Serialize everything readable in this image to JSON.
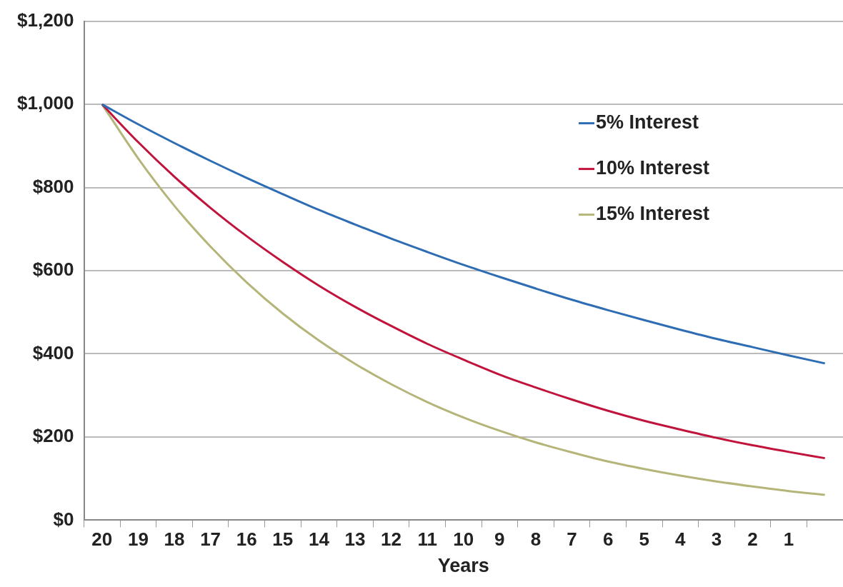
{
  "chart_data": {
    "type": "line",
    "xlabel": "Years",
    "categories": [
      "20",
      "19",
      "18",
      "17",
      "16",
      "15",
      "14",
      "13",
      "12",
      "11",
      "10",
      "9",
      "8",
      "7",
      "6",
      "5",
      "4",
      "3",
      "2",
      "1",
      null
    ],
    "series": [
      {
        "name": "5% Interest",
        "color": "#2e6db4",
        "values": [
          1000,
          952,
          907,
          864,
          823,
          784,
          746,
          711,
          677,
          645,
          614,
          585,
          557,
          530,
          505,
          481,
          458,
          436,
          416,
          396,
          377
        ]
      },
      {
        "name": "10% Interest",
        "color": "#c0143c",
        "values": [
          1000,
          909,
          826,
          751,
          683,
          621,
          564,
          513,
          467,
          424,
          386,
          350,
          319,
          290,
          263,
          239,
          218,
          198,
          180,
          164,
          149
        ]
      },
      {
        "name": "15% Interest",
        "color": "#b5b57a",
        "values": [
          1000,
          870,
          756,
          658,
          572,
          497,
          432,
          376,
          327,
          284,
          247,
          215,
          187,
          163,
          141,
          123,
          107,
          93,
          81,
          70,
          61
        ]
      }
    ],
    "ylim": [
      0,
      1200
    ],
    "yticks": [
      {
        "value": 0,
        "label": "$0"
      },
      {
        "value": 200,
        "label": "$200"
      },
      {
        "value": 400,
        "label": "$400"
      },
      {
        "value": 600,
        "label": "$600"
      },
      {
        "value": 800,
        "label": "$800"
      },
      {
        "value": 1000,
        "label": "$1,000"
      },
      {
        "value": 1200,
        "label": "$1,200"
      }
    ],
    "grid": "y",
    "legend": "top right",
    "marker": "none",
    "line_style": "solid"
  }
}
